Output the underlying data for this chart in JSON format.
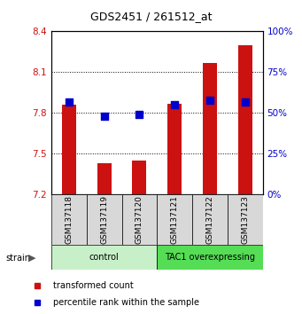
{
  "title": "GDS2451 / 261512_at",
  "samples": [
    "GSM137118",
    "GSM137119",
    "GSM137120",
    "GSM137121",
    "GSM137122",
    "GSM137123"
  ],
  "transformed_counts": [
    7.86,
    7.43,
    7.45,
    7.87,
    8.17,
    8.3
  ],
  "percentile_ranks": [
    57,
    48,
    49,
    55,
    58,
    57
  ],
  "ymin": 7.2,
  "ymax": 8.4,
  "yticks": [
    7.2,
    7.5,
    7.8,
    8.1,
    8.4
  ],
  "right_yticks": [
    0,
    25,
    50,
    75,
    100
  ],
  "bar_color": "#cc1111",
  "dot_color": "#0000cc",
  "group_labels": [
    "control",
    "TAC1 overexpressing"
  ],
  "group_ranges": [
    [
      0,
      3
    ],
    [
      3,
      6
    ]
  ],
  "group_colors_light": [
    "#c8f0c8",
    "#55dd55"
  ],
  "bg_color": "#ffffff",
  "legend_items": [
    "transformed count",
    "percentile rank within the sample"
  ],
  "legend_colors": [
    "#cc1111",
    "#0000cc"
  ],
  "bar_width": 0.4,
  "dot_size": 40,
  "title_fontsize": 9,
  "tick_fontsize": 7.5,
  "label_fontsize": 7,
  "sample_fontsize": 6.5
}
